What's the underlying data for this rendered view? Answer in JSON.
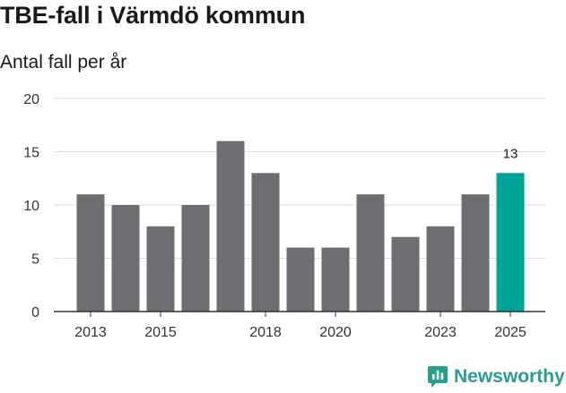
{
  "header": {
    "title": "TBE-fall i Värmdö kommun",
    "subtitle": "Antal fall per år"
  },
  "brand": {
    "name": "Newsworthy",
    "color": "#2a9d8f",
    "icon": "newsworthy-logo-icon"
  },
  "colors": {
    "bar": "#6e6d72",
    "highlight": "#00a398",
    "grid": "#dedede",
    "axis": "#333333"
  },
  "chart_data": {
    "type": "bar",
    "title": "TBE-fall i Värmdö kommun",
    "subtitle": "Antal fall per år",
    "xlabel": "",
    "ylabel": "",
    "categories": [
      "2013",
      "2014",
      "2015",
      "2016",
      "2017",
      "2018",
      "2019",
      "2020",
      "2021",
      "2022",
      "2023",
      "2024",
      "2025"
    ],
    "values": [
      11,
      10,
      8,
      10,
      16,
      13,
      6,
      6,
      11,
      7,
      8,
      11,
      13
    ],
    "highlight_index": 12,
    "ylim": [
      0,
      20
    ],
    "yticks": [
      0,
      5,
      10,
      15,
      20
    ],
    "xtick_labels": [
      "2013",
      "2015",
      "2018",
      "2020",
      "2023",
      "2025"
    ],
    "data_labels": [
      {
        "index": 12,
        "text": "13"
      }
    ],
    "grid": true,
    "legend": "none"
  }
}
